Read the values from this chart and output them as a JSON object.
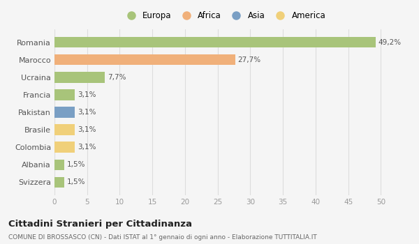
{
  "countries": [
    "Romania",
    "Marocco",
    "Ucraina",
    "Francia",
    "Pakistan",
    "Brasile",
    "Colombia",
    "Albania",
    "Svizzera"
  ],
  "values": [
    49.2,
    27.7,
    7.7,
    3.1,
    3.1,
    3.1,
    3.1,
    1.5,
    1.5
  ],
  "labels": [
    "49,2%",
    "27,7%",
    "7,7%",
    "3,1%",
    "3,1%",
    "3,1%",
    "3,1%",
    "1,5%",
    "1,5%"
  ],
  "colors": [
    "#a8c47a",
    "#f0b07a",
    "#a8c47a",
    "#a8c47a",
    "#7a9fc4",
    "#f0d07a",
    "#f0d07a",
    "#a8c47a",
    "#a8c47a"
  ],
  "legend_labels": [
    "Europa",
    "Africa",
    "Asia",
    "America"
  ],
  "legend_colors": [
    "#a8c47a",
    "#f0b07a",
    "#7a9fc4",
    "#f0d07a"
  ],
  "title": "Cittadini Stranieri per Cittadinanza",
  "subtitle": "COMUNE DI BROSSASCO (CN) - Dati ISTAT al 1° gennaio di ogni anno - Elaborazione TUTTITALIA.IT",
  "xlim": [
    0,
    52
  ],
  "xticks": [
    0,
    5,
    10,
    15,
    20,
    25,
    30,
    35,
    40,
    45,
    50
  ],
  "bg_color": "#f5f5f5",
  "grid_color": "#dddddd"
}
